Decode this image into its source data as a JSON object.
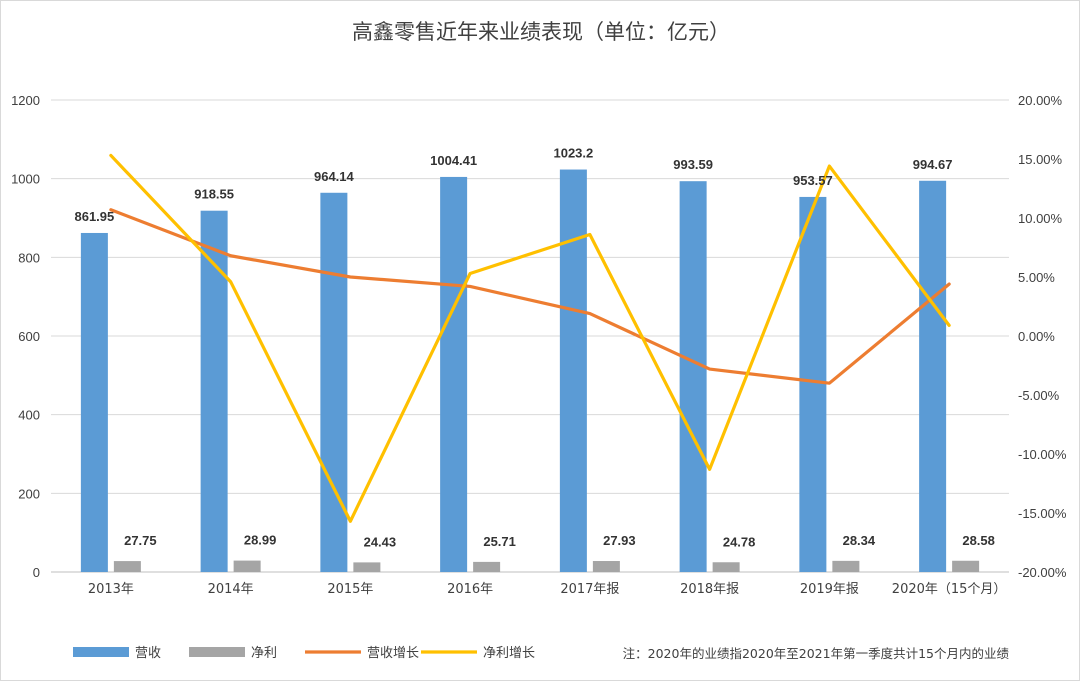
{
  "chart_data": {
    "type": "bar",
    "title": "高鑫零售近年来业绩表现（单位：亿元）",
    "categories": [
      "2013年",
      "2014年",
      "2015年",
      "2016年",
      "2017年报",
      "2018年报",
      "2019年报",
      "2020年（15个月）"
    ],
    "series": [
      {
        "name": "营收",
        "kind": "bar",
        "axis": "left",
        "color": "#5B9BD5",
        "values": [
          861.95,
          918.55,
          964.14,
          1004.41,
          1023.2,
          993.59,
          953.57,
          994.67
        ],
        "labels": [
          "861.95",
          "918.55",
          "964.14",
          "1004.41",
          "1023.2",
          "993.59",
          "953.57",
          "994.67"
        ]
      },
      {
        "name": "净利",
        "kind": "bar",
        "axis": "left",
        "color": "#A5A5A5",
        "values": [
          27.75,
          28.99,
          24.43,
          25.71,
          27.93,
          24.78,
          28.34,
          28.58
        ],
        "labels": [
          "27.75",
          "28.99",
          "24.43",
          "25.71",
          "27.93",
          "24.78",
          "28.34",
          "28.58"
        ]
      },
      {
        "name": "营收增长",
        "kind": "line",
        "axis": "right",
        "color": "#ED7D31",
        "values": [
          10.7,
          6.8,
          5.0,
          4.2,
          1.9,
          -2.8,
          -4.0,
          4.4
        ]
      },
      {
        "name": "净利增长",
        "kind": "line",
        "axis": "right",
        "color": "#FFC000",
        "values": [
          15.3,
          4.6,
          -15.7,
          5.3,
          8.6,
          -11.3,
          14.4,
          0.9
        ]
      }
    ],
    "y_left": {
      "min": 0,
      "max": 1200,
      "ticks": [
        "0",
        "200",
        "400",
        "600",
        "800",
        "1000",
        "1200"
      ]
    },
    "y_right": {
      "min": -20,
      "max": 20,
      "ticks": [
        "-20.00%",
        "-15.00%",
        "-10.00%",
        "-5.00%",
        "0.00%",
        "5.00%",
        "10.00%",
        "15.00%",
        "20.00%"
      ]
    },
    "grid": true,
    "legend_position": "bottom",
    "note": "注：2020年的业绩指2020年至2021年第一季度共计15个月内的业绩"
  }
}
